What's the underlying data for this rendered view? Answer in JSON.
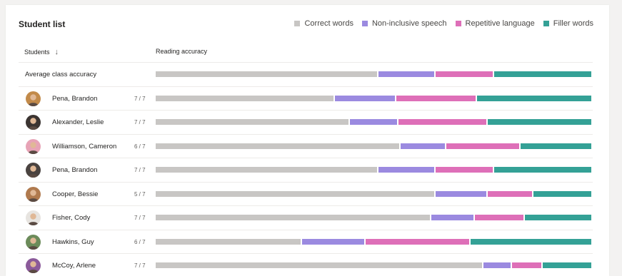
{
  "title": "Student list",
  "legend": [
    {
      "label": "Correct words",
      "color": "#c8c6c4"
    },
    {
      "label": "Non-inclusive speech",
      "color": "#9b8ae0"
    },
    {
      "label": "Repetitive language",
      "color": "#de6fb8"
    },
    {
      "label": "Filler words",
      "color": "#34a196"
    }
  ],
  "columns": {
    "students": "Students",
    "reading": "Reading accuracy"
  },
  "rows": [
    {
      "name": "Average class accuracy",
      "score": "",
      "avatar": "",
      "values": [
        51,
        13,
        13.5,
        22.5
      ]
    },
    {
      "name": "Pena, Brandon",
      "score": "7 / 7",
      "avatar": "#c28a4a",
      "values": [
        41,
        14,
        18.5,
        26.5
      ]
    },
    {
      "name": "Alexander, Leslie",
      "score": "7 / 7",
      "avatar": "#3b3431",
      "values": [
        44.5,
        11,
        20.5,
        24
      ]
    },
    {
      "name": "Williamson, Cameron",
      "score": "6 / 7",
      "avatar": "#e7a3b6",
      "values": [
        56,
        10.5,
        17,
        16.5
      ]
    },
    {
      "name": "Pena, Brandon",
      "score": "7 / 7",
      "avatar": "#4a4340",
      "values": [
        51,
        13,
        13.5,
        22.5
      ]
    },
    {
      "name": "Cooper, Bessie",
      "score": "5 / 7",
      "avatar": "#b07a4e",
      "values": [
        64,
        12,
        10.5,
        13.5
      ]
    },
    {
      "name": "Fisher, Cody",
      "score": "7 / 7",
      "avatar": "#e7e4e0",
      "values": [
        63,
        10,
        11.5,
        15.5
      ]
    },
    {
      "name": "Hawkins, Guy",
      "score": "6 / 7",
      "avatar": "#6c8b5a",
      "values": [
        33.5,
        14.5,
        24,
        28
      ]
    },
    {
      "name": "McCoy, Arlene",
      "score": "7 / 7",
      "avatar": "#8b5a9a",
      "values": [
        75,
        6.5,
        7,
        11.5
      ]
    }
  ]
}
